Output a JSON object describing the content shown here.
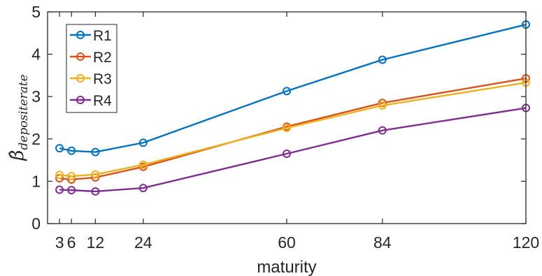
{
  "chart_data": {
    "type": "line",
    "x": [
      3,
      6,
      12,
      24,
      60,
      84,
      120
    ],
    "xticks": [
      "3",
      "6",
      "12",
      "24",
      "60",
      "84",
      "120"
    ],
    "xlabel": "maturity",
    "ylabel": "β̂",
    "ylabel_subscript": "depositerate",
    "xlim": [
      0,
      120
    ],
    "ylim": [
      0,
      5
    ],
    "yticks": [
      "0",
      "1",
      "2",
      "3",
      "4",
      "5"
    ],
    "grid": false,
    "legend_position": "top-left",
    "series": [
      {
        "name": "R1",
        "color": "#0072BD",
        "values": [
          1.78,
          1.72,
          1.69,
          1.91,
          3.13,
          3.87,
          4.7
        ]
      },
      {
        "name": "R2",
        "color": "#D95319",
        "values": [
          1.07,
          1.04,
          1.09,
          1.34,
          2.29,
          2.85,
          3.43
        ]
      },
      {
        "name": "R3",
        "color": "#EDB120",
        "values": [
          1.15,
          1.12,
          1.16,
          1.39,
          2.26,
          2.79,
          3.33
        ]
      },
      {
        "name": "R4",
        "color": "#7E2F8E",
        "values": [
          0.8,
          0.79,
          0.76,
          0.84,
          1.65,
          2.2,
          2.73
        ]
      }
    ]
  }
}
